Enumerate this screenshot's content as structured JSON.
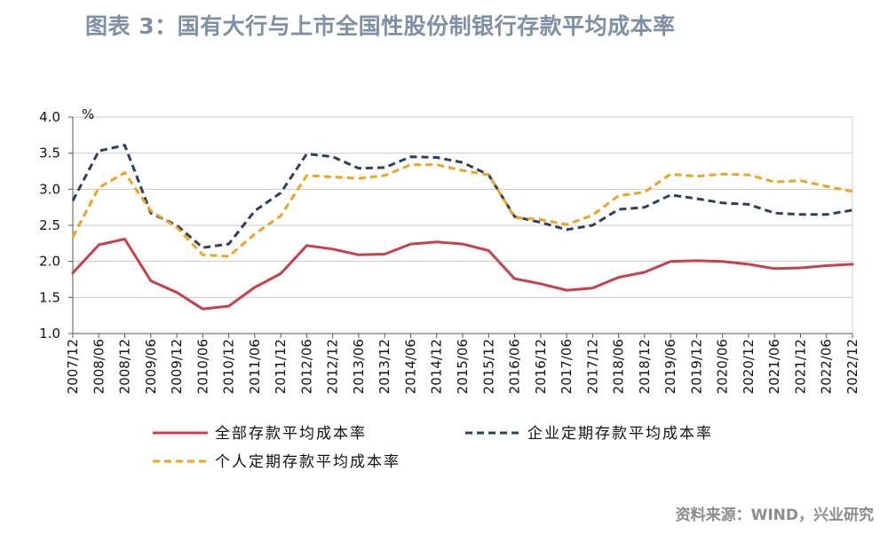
{
  "title": "图表 3：国有大行与上市全国性股份制银行存款平均成本率",
  "source": "资料来源：WIND，兴业研究",
  "colors": {
    "total": "#c9404b",
    "corporate": "#2f3f5c",
    "personal": "#f0a31f",
    "grid": "#cccccc",
    "title": "#7f8fa6"
  },
  "chart_data": {
    "type": "line",
    "title": "",
    "xlabel": "",
    "ylabel": "%",
    "ylim": [
      1.0,
      4.0
    ],
    "yticks": [
      "4.0",
      "3.5",
      "3.0",
      "2.5",
      "2.0",
      "1.5",
      "1.0"
    ],
    "grid": true,
    "legend_position": "bottom",
    "categories": [
      "2007/12",
      "2008/06",
      "2008/12",
      "2009/06",
      "2009/12",
      "2010/06",
      "2010/12",
      "2011/06",
      "2011/12",
      "2012/06",
      "2012/12",
      "2013/06",
      "2013/12",
      "2014/06",
      "2014/12",
      "2015/06",
      "2015/12",
      "2016/06",
      "2016/12",
      "2017/06",
      "2017/12",
      "2018/06",
      "2018/12",
      "2019/06",
      "2019/12",
      "2020/06",
      "2020/12",
      "2021/06",
      "2021/12",
      "2022/06",
      "2022/12"
    ],
    "series": [
      {
        "name": "全部存款平均成本率",
        "key": "total",
        "style": "solid",
        "values": [
          1.84,
          2.23,
          2.31,
          1.73,
          1.57,
          1.34,
          1.38,
          1.64,
          1.83,
          2.22,
          2.17,
          2.09,
          2.1,
          2.24,
          2.27,
          2.24,
          2.15,
          1.76,
          1.69,
          1.6,
          1.63,
          1.78,
          1.85,
          2.0,
          2.01,
          2.0,
          1.96,
          1.9,
          1.91,
          1.94,
          1.96
        ]
      },
      {
        "name": "企业定期存款平均成本率",
        "key": "corporate",
        "style": "dashed",
        "values": [
          2.84,
          3.53,
          3.61,
          2.67,
          2.5,
          2.19,
          2.24,
          2.7,
          2.95,
          3.49,
          3.45,
          3.29,
          3.3,
          3.45,
          3.44,
          3.37,
          3.2,
          2.62,
          2.54,
          2.44,
          2.5,
          2.72,
          2.75,
          2.92,
          2.87,
          2.81,
          2.79,
          2.67,
          2.65,
          2.65,
          2.71
        ]
      },
      {
        "name": "个人定期存款平均成本率",
        "key": "personal",
        "style": "dashed",
        "values": [
          2.34,
          3.02,
          3.23,
          2.7,
          2.47,
          2.09,
          2.07,
          2.38,
          2.63,
          3.19,
          3.17,
          3.15,
          3.19,
          3.34,
          3.34,
          3.26,
          3.2,
          2.61,
          2.58,
          2.51,
          2.64,
          2.91,
          2.96,
          3.21,
          3.18,
          3.21,
          3.2,
          3.1,
          3.12,
          3.04,
          2.97
        ]
      }
    ]
  }
}
